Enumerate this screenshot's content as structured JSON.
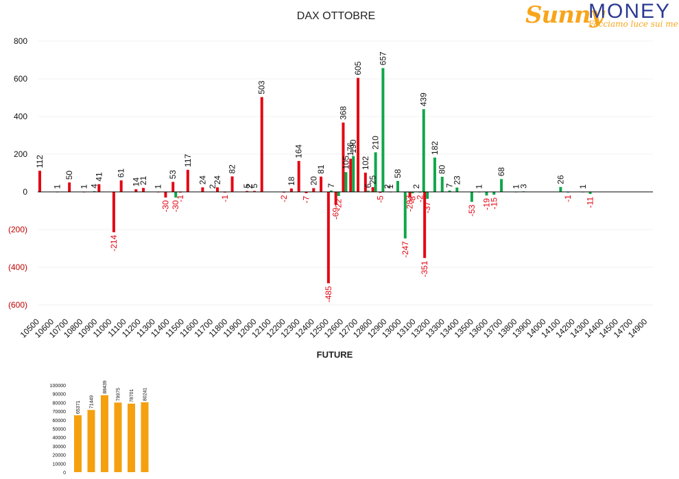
{
  "colors": {
    "negative_red": "#e30613",
    "positive_green": "#10a64a",
    "future_orange": "#f5a00f",
    "brand_blue": "#2b3990"
  },
  "logo": {
    "word1": "Sunny",
    "word2": "MONEY",
    "tagline": "Facciamo luce sui mercati"
  },
  "chart_data": [
    {
      "type": "bar",
      "title": "DAX OTTOBRE",
      "xlabel": "",
      "ylabel": "",
      "ylim": [
        -600,
        800
      ],
      "ytick_labels": [
        "(600)",
        "(400)",
        "(200)",
        "0",
        "200",
        "400",
        "600",
        "800"
      ],
      "grid": true,
      "legend": "none",
      "categories": [
        "10500",
        "10600",
        "10700",
        "10800",
        "10900",
        "11000",
        "11100",
        "11200",
        "11300",
        "11400",
        "11500",
        "11600",
        "11700",
        "11800",
        "11900",
        "12000",
        "12100",
        "12200",
        "12300",
        "12400",
        "12500",
        "12600",
        "12700",
        "12800",
        "12900",
        "13000",
        "13100",
        "13200",
        "13300",
        "13400",
        "13500",
        "13600",
        "13700",
        "13800",
        "13900",
        "14000",
        "14100",
        "14200",
        "14300",
        "14400",
        "14500",
        "14700",
        "14900"
      ],
      "series": [
        {
          "color": "red",
          "points": [
            {
              "x": 10500,
              "y": 112
            },
            {
              "x": 10700,
              "y": 50
            },
            {
              "x": 10800,
              "y": 1
            },
            {
              "x": 10900,
              "y": 41
            },
            {
              "x": 11000,
              "y": -214
            },
            {
              "x": 11050,
              "y": 61
            },
            {
              "x": 11150,
              "y": 14
            },
            {
              "x": 11200,
              "y": 21
            },
            {
              "x": 11300,
              "y": 1
            },
            {
              "x": 11350,
              "y": -30
            },
            {
              "x": 11400,
              "y": 53
            },
            {
              "x": 11450,
              "y": -1
            },
            {
              "x": 11500,
              "y": 117
            },
            {
              "x": 11600,
              "y": 24
            },
            {
              "x": 11700,
              "y": 24
            },
            {
              "x": 11750,
              "y": -1
            },
            {
              "x": 11800,
              "y": 82
            },
            {
              "x": 11900,
              "y": 5
            },
            {
              "x": 11950,
              "y": 5
            },
            {
              "x": 12000,
              "y": 503
            },
            {
              "x": 12150,
              "y": -2
            },
            {
              "x": 12200,
              "y": 18
            },
            {
              "x": 12250,
              "y": 164
            },
            {
              "x": 12300,
              "y": -7
            },
            {
              "x": 12350,
              "y": 20
            },
            {
              "x": 12400,
              "y": 81
            },
            {
              "x": 12450,
              "y": -485
            },
            {
              "x": 12500,
              "y": -69
            },
            {
              "x": 12550,
              "y": 368
            },
            {
              "x": 12600,
              "y": 176
            },
            {
              "x": 12650,
              "y": 605
            },
            {
              "x": 12700,
              "y": 102
            },
            {
              "x": 12750,
              "y": 25
            },
            {
              "x": 12800,
              "y": -5
            },
            {
              "x": 12850,
              "y": 2
            },
            {
              "x": 13000,
              "y": -28
            },
            {
              "x": 13100,
              "y": -351
            }
          ]
        },
        {
          "color": "green",
          "points": [
            {
              "x": 10600,
              "y": 1
            },
            {
              "x": 10850,
              "y": 4
            },
            {
              "x": 11400,
              "y": -30
            },
            {
              "x": 11650,
              "y": 2
            },
            {
              "x": 11900,
              "y": 2
            },
            {
              "x": 12450,
              "y": 7
            },
            {
              "x": 12500,
              "y": -22
            },
            {
              "x": 12550,
              "y": 105
            },
            {
              "x": 12600,
              "y": 190
            },
            {
              "x": 12700,
              "y": 6
            },
            {
              "x": 12750,
              "y": 210
            },
            {
              "x": 12850,
              "y": 1
            },
            {
              "x": 12800,
              "y": 657
            },
            {
              "x": 12900,
              "y": 58
            },
            {
              "x": 12950,
              "y": -247
            },
            {
              "x": 12975,
              "y": -3
            },
            {
              "x": 13000,
              "y": -8
            },
            {
              "x": 13025,
              "y": 2
            },
            {
              "x": 13050,
              "y": -2
            },
            {
              "x": 13075,
              "y": 439
            },
            {
              "x": 13100,
              "y": -37
            },
            {
              "x": 13150,
              "y": 182
            },
            {
              "x": 13200,
              "y": 80
            },
            {
              "x": 13250,
              "y": 7
            },
            {
              "x": 13300,
              "y": 23
            },
            {
              "x": 13400,
              "y": -53
            },
            {
              "x": 13450,
              "y": 1
            },
            {
              "x": 13500,
              "y": -19
            },
            {
              "x": 13550,
              "y": -15
            },
            {
              "x": 13600,
              "y": 68
            },
            {
              "x": 13700,
              "y": 1
            },
            {
              "x": 13750,
              "y": 3
            },
            {
              "x": 14000,
              "y": 26
            },
            {
              "x": 14050,
              "y": -1
            },
            {
              "x": 14150,
              "y": 1
            },
            {
              "x": 14200,
              "y": -11
            }
          ]
        }
      ]
    },
    {
      "type": "bar",
      "title": "FUTURE",
      "xlabel": "",
      "ylabel": "",
      "ylim": [
        0,
        100000
      ],
      "ytick_labels": [
        "0",
        "10000",
        "20000",
        "30000",
        "40000",
        "50000",
        "60000",
        "70000",
        "80000",
        "90000",
        "100000"
      ],
      "grid": false,
      "legend": "none",
      "categories": [
        "",
        "",
        "",
        "",
        "",
        ""
      ],
      "values": [
        65371,
        71449,
        88439,
        79975,
        78701,
        80241
      ]
    }
  ]
}
